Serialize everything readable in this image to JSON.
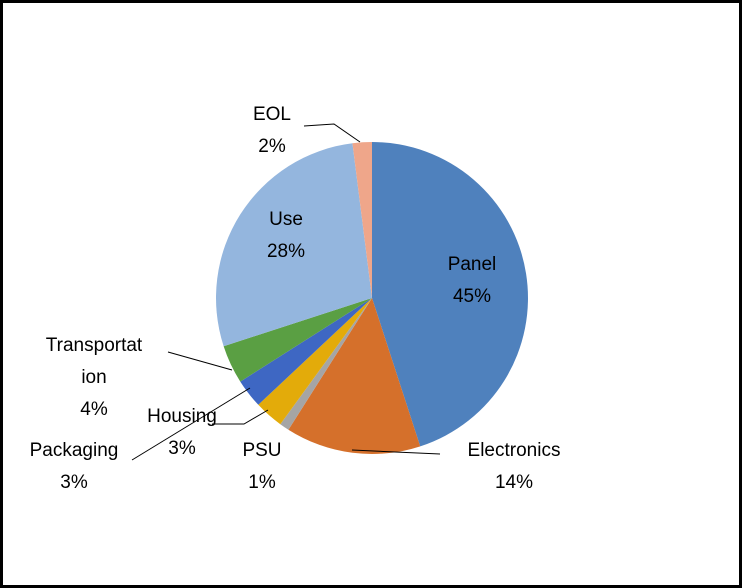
{
  "chart_data": {
    "type": "pie",
    "title": "",
    "start_angle_deg": 0,
    "direction": "clockwise",
    "slices": [
      {
        "name": "Panel",
        "value": 45,
        "label_lines": [
          "Panel",
          "45%"
        ],
        "color": "#4f81bd"
      },
      {
        "name": "Electronics",
        "value": 14,
        "label_lines": [
          "Electronics",
          "14%"
        ],
        "color": "#d5702b"
      },
      {
        "name": "PSU",
        "value": 1,
        "label_lines": [
          "PSU",
          "1%"
        ],
        "color": "#a5a5a5"
      },
      {
        "name": "Housing",
        "value": 3,
        "label_lines": [
          "Housing",
          "3%"
        ],
        "color": "#e3ab0a"
      },
      {
        "name": "Packaging",
        "value": 3,
        "label_lines": [
          "Packaging",
          "3%"
        ],
        "color": "#3e67c3"
      },
      {
        "name": "Transportation",
        "value": 4,
        "label_lines": [
          "Transportat",
          "ion",
          "4%"
        ],
        "color": "#5a9f43"
      },
      {
        "name": "Use",
        "value": 28,
        "label_lines": [
          "Use",
          "28%"
        ],
        "color": "#94b6de"
      },
      {
        "name": "EOL",
        "value": 2,
        "label_lines": [
          "EOL",
          "2%"
        ],
        "color": "#efa68a"
      }
    ]
  }
}
